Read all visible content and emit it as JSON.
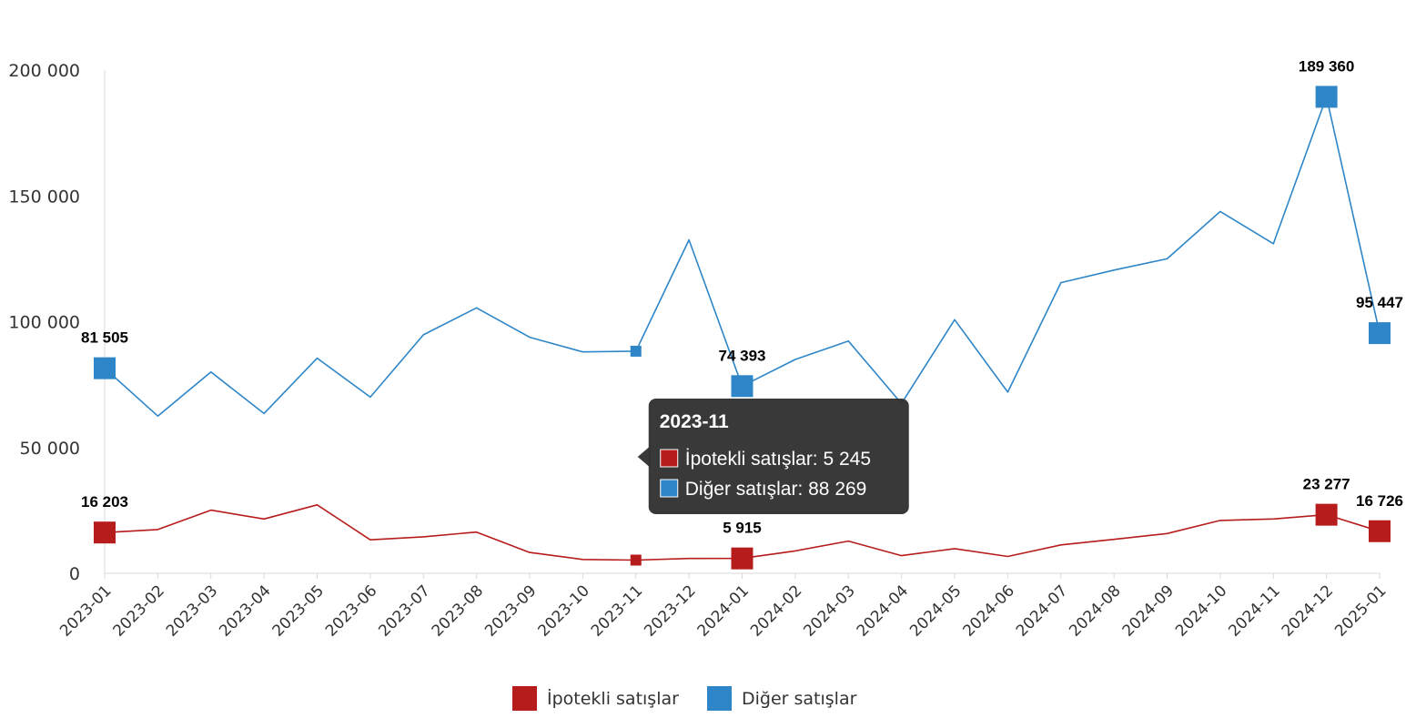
{
  "chart_data": {
    "type": "line",
    "categories": [
      "2023-01",
      "2023-02",
      "2023-03",
      "2023-04",
      "2023-05",
      "2023-06",
      "2023-07",
      "2023-08",
      "2023-09",
      "2023-10",
      "2023-11",
      "2023-12",
      "2024-01",
      "2024-02",
      "2024-03",
      "2024-04",
      "2024-05",
      "2024-06",
      "2024-07",
      "2024-08",
      "2024-09",
      "2024-10",
      "2024-11",
      "2024-12",
      "2025-01"
    ],
    "series": [
      {
        "name": "İpotekli satışlar",
        "color": "#b71c1c",
        "values": [
          16203,
          17400,
          25100,
          21600,
          27200,
          13300,
          14500,
          16400,
          8300,
          5500,
          5245,
          5900,
          5915,
          8900,
          12800,
          7000,
          9800,
          6700,
          11300,
          13500,
          15800,
          21000,
          21600,
          23277,
          16726
        ]
      },
      {
        "name": "Diğer satışlar",
        "color": "#2e86c8",
        "values": [
          81505,
          62500,
          80000,
          63500,
          85500,
          70000,
          94800,
          105500,
          93800,
          88000,
          88269,
          132500,
          74393,
          85000,
          92300,
          67500,
          100800,
          72000,
          115500,
          120500,
          125000,
          143800,
          131000,
          189360,
          95447
        ]
      }
    ],
    "labeled_points": [
      {
        "series": 1,
        "index": 0,
        "text": "81 505"
      },
      {
        "series": 1,
        "index": 12,
        "text": "74 393"
      },
      {
        "series": 1,
        "index": 23,
        "text": "189 360"
      },
      {
        "series": 1,
        "index": 24,
        "text": "95 447"
      },
      {
        "series": 0,
        "index": 0,
        "text": "16 203"
      },
      {
        "series": 0,
        "index": 12,
        "text": "5 915"
      },
      {
        "series": 0,
        "index": 23,
        "text": "23 277"
      },
      {
        "series": 0,
        "index": 24,
        "text": "16 726"
      }
    ],
    "ylim": [
      0,
      200000
    ],
    "yticks": [
      0,
      50000,
      100000,
      150000,
      200000
    ],
    "ytick_labels": [
      "0",
      "50 000",
      "100 000",
      "150 000",
      "200 000"
    ],
    "grid": false,
    "legend_position": "bottom-center",
    "tooltip": {
      "index": 10,
      "title": "2023-11",
      "rows": [
        "İpotekli satışlar: 5 245",
        "Diğer satışlar: 88 269"
      ]
    }
  }
}
